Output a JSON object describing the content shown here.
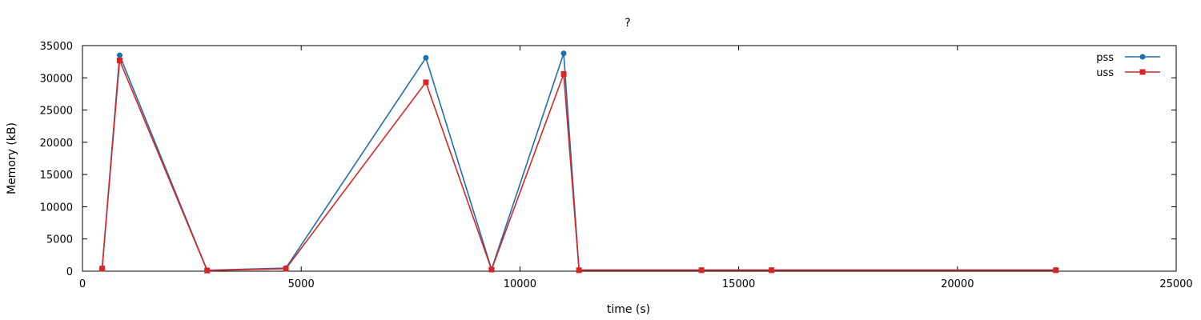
{
  "colors": {
    "pss": "#1f6fae",
    "uss": "#d62728",
    "axis": "#000000",
    "background": "#ffffff"
  },
  "chart_data": {
    "type": "line",
    "title": "?",
    "xlabel": "time (s)",
    "ylabel": "Memory (kB)",
    "xlim": [
      0,
      25000
    ],
    "ylim": [
      0,
      35000
    ],
    "xticks": [
      0,
      5000,
      10000,
      15000,
      20000,
      25000
    ],
    "yticks": [
      0,
      5000,
      10000,
      15000,
      20000,
      25000,
      30000,
      35000
    ],
    "grid": false,
    "legend": "top-right",
    "series": [
      {
        "name": "pss",
        "color": "#1f6fae",
        "marker": "circle",
        "points": [
          [
            450,
            450
          ],
          [
            850,
            33500
          ],
          [
            2850,
            150
          ],
          [
            4650,
            500
          ],
          [
            7850,
            33100
          ],
          [
            9350,
            300
          ],
          [
            11000,
            33800
          ],
          [
            11350,
            200
          ],
          [
            14150,
            200
          ],
          [
            15750,
            200
          ],
          [
            22250,
            200
          ]
        ]
      },
      {
        "name": "uss",
        "color": "#d62728",
        "marker": "square",
        "points": [
          [
            450,
            400
          ],
          [
            850,
            32700
          ],
          [
            2850,
            100
          ],
          [
            4650,
            400
          ],
          [
            7850,
            29300
          ],
          [
            9350,
            250
          ],
          [
            11000,
            30600
          ],
          [
            11350,
            150
          ],
          [
            14150,
            150
          ],
          [
            15750,
            150
          ],
          [
            22250,
            150
          ]
        ]
      }
    ]
  }
}
